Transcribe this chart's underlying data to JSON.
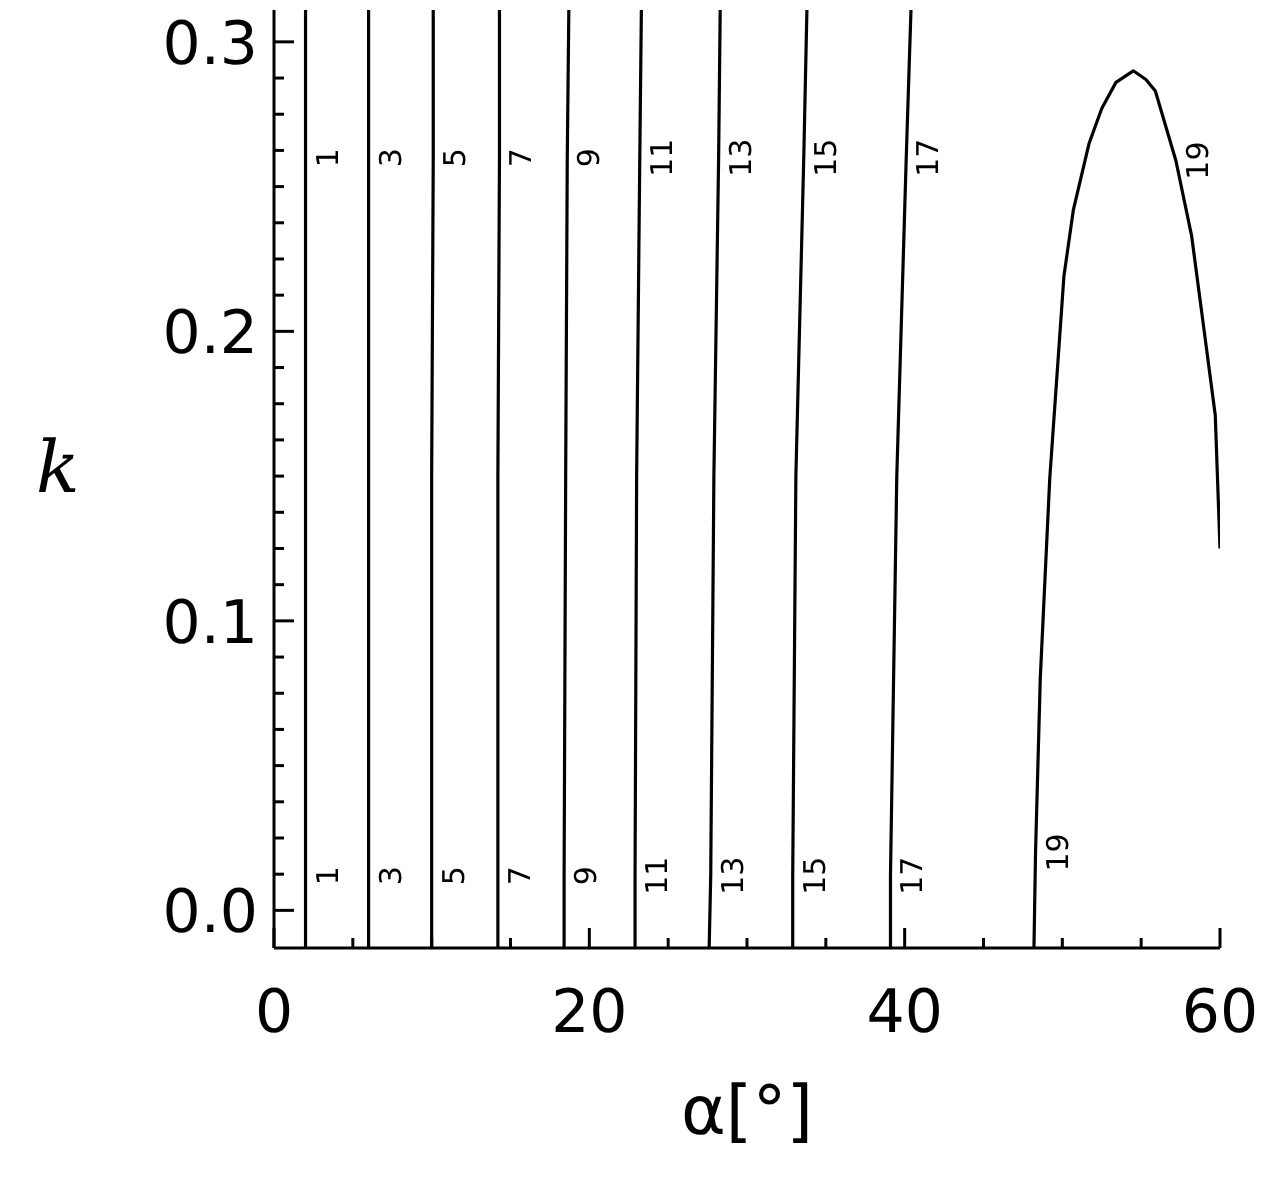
{
  "chart_data": {
    "type": "line",
    "xlabel": "α[°]",
    "ylabel": "k",
    "xlim": [
      0,
      60
    ],
    "ylim": [
      -0.013,
      0.311
    ],
    "xticks": [
      0,
      {
        "value": 5,
        "label": null
      },
      {
        "value": 10,
        "label": null
      },
      {
        "value": 15,
        "label": null
      },
      20,
      {
        "value": 25,
        "label": null
      },
      {
        "value": 30,
        "label": null
      },
      {
        "value": 35,
        "label": null
      },
      40,
      {
        "value": 45,
        "label": null
      },
      {
        "value": 50,
        "label": null
      },
      {
        "value": 55,
        "label": null
      },
      60
    ],
    "yticks": [
      {
        "value": 0,
        "label": "0.0"
      },
      {
        "value": 0.0125,
        "label": null
      },
      {
        "value": 0.025,
        "label": null
      },
      {
        "value": 0.0375,
        "label": null
      },
      {
        "value": 0.05,
        "label": null
      },
      {
        "value": 0.0625,
        "label": null
      },
      {
        "value": 0.075,
        "label": null
      },
      {
        "value": 0.0875,
        "label": null
      },
      {
        "value": 0.1,
        "label": "0.1"
      },
      {
        "value": 0.1125,
        "label": null
      },
      {
        "value": 0.125,
        "label": null
      },
      {
        "value": 0.1375,
        "label": null
      },
      {
        "value": 0.15,
        "label": null
      },
      {
        "value": 0.1625,
        "label": null
      },
      {
        "value": 0.175,
        "label": null
      },
      {
        "value": 0.1875,
        "label": null
      },
      {
        "value": 0.2,
        "label": "0.2"
      },
      {
        "value": 0.2125,
        "label": null
      },
      {
        "value": 0.225,
        "label": null
      },
      {
        "value": 0.2375,
        "label": null
      },
      {
        "value": 0.25,
        "label": null
      },
      {
        "value": 0.2625,
        "label": null
      },
      {
        "value": 0.275,
        "label": null
      },
      {
        "value": 0.2875,
        "label": null
      },
      {
        "value": 0.3,
        "label": "0.3"
      }
    ],
    "marker": "none",
    "line_style": "solid",
    "series": [
      {
        "name": "1",
        "color": "#000000",
        "x": [
          2.0,
          2.0,
          2.0,
          2.0,
          2.0
        ],
        "values": [
          -0.013,
          0.012,
          0.15,
          0.26,
          0.311
        ]
      },
      {
        "name": "3",
        "color": "#000000",
        "x": [
          6.0,
          6.0,
          6.0,
          6.0,
          6.0
        ],
        "values": [
          -0.013,
          0.012,
          0.15,
          0.26,
          0.311
        ]
      },
      {
        "name": "5",
        "color": "#000000",
        "x": [
          10.0,
          10.0,
          10.0,
          10.1,
          10.1
        ],
        "values": [
          -0.013,
          0.012,
          0.15,
          0.26,
          0.311
        ]
      },
      {
        "name": "7",
        "color": "#000000",
        "x": [
          14.2,
          14.2,
          14.2,
          14.3,
          14.3
        ],
        "values": [
          -0.013,
          0.012,
          0.15,
          0.26,
          0.311
        ]
      },
      {
        "name": "9",
        "color": "#000000",
        "x": [
          18.4,
          18.4,
          18.5,
          18.6,
          18.7
        ],
        "values": [
          -0.013,
          0.012,
          0.15,
          0.26,
          0.311
        ]
      },
      {
        "name": "11",
        "color": "#000000",
        "x": [
          22.9,
          22.9,
          23.0,
          23.2,
          23.3
        ],
        "values": [
          -0.013,
          0.012,
          0.15,
          0.26,
          0.311
        ]
      },
      {
        "name": "13",
        "color": "#000000",
        "x": [
          27.6,
          27.7,
          27.9,
          28.2,
          28.3
        ],
        "values": [
          -0.013,
          0.012,
          0.15,
          0.26,
          0.311
        ]
      },
      {
        "name": "15",
        "color": "#000000",
        "x": [
          32.9,
          32.9,
          33.1,
          33.6,
          33.8
        ],
        "values": [
          -0.013,
          0.012,
          0.15,
          0.26,
          0.311
        ]
      },
      {
        "name": "17",
        "color": "#000000",
        "x": [
          39.1,
          39.1,
          39.5,
          40.1,
          40.4
        ],
        "values": [
          -0.013,
          0.012,
          0.15,
          0.26,
          0.311
        ]
      },
      {
        "name": "19",
        "color": "#000000",
        "x": [
          48.2,
          48.3,
          48.6,
          49.2,
          50.1,
          50.7,
          51.7,
          52.5,
          53.4,
          54.5,
          55.3,
          55.9,
          57.2,
          58.2,
          59.0,
          59.7,
          60
        ],
        "values": [
          -0.013,
          0.02,
          0.08,
          0.149,
          0.219,
          0.242,
          0.265,
          0.277,
          0.286,
          0.29,
          0.287,
          0.283,
          0.259,
          0.233,
          0.2,
          0.171,
          0.125
        ]
      }
    ]
  }
}
